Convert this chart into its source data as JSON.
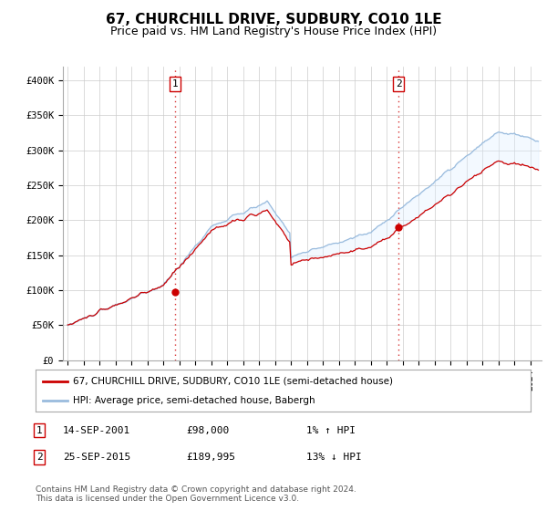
{
  "title": "67, CHURCHILL DRIVE, SUDBURY, CO10 1LE",
  "subtitle": "Price paid vs. HM Land Registry's House Price Index (HPI)",
  "ylabel_ticks": [
    "£0",
    "£50K",
    "£100K",
    "£150K",
    "£200K",
    "£250K",
    "£300K",
    "£350K",
    "£400K"
  ],
  "ytick_values": [
    0,
    50000,
    100000,
    150000,
    200000,
    250000,
    300000,
    350000,
    400000
  ],
  "ylim": [
    0,
    420000
  ],
  "xlim_start": 1994.7,
  "xlim_end": 2024.7,
  "red_color": "#cc0000",
  "blue_color": "#99bbdd",
  "fill_color": "#ddeeff",
  "dashed_color": "#cc0000",
  "grid_color": "#cccccc",
  "legend_label_red": "67, CHURCHILL DRIVE, SUDBURY, CO10 1LE (semi-detached house)",
  "legend_label_blue": "HPI: Average price, semi-detached house, Babergh",
  "point1_x": 2001.71,
  "point1_y": 98000,
  "point1_label": "1",
  "point2_x": 2015.73,
  "point2_y": 189995,
  "point2_label": "2",
  "table_rows": [
    {
      "num": "1",
      "date": "14-SEP-2001",
      "price": "£98,000",
      "hpi": "1% ↑ HPI"
    },
    {
      "num": "2",
      "date": "25-SEP-2015",
      "price": "£189,995",
      "hpi": "13% ↓ HPI"
    }
  ],
  "footer": "Contains HM Land Registry data © Crown copyright and database right 2024.\nThis data is licensed under the Open Government Licence v3.0.",
  "background_color": "#ffffff",
  "title_fontsize": 11,
  "subtitle_fontsize": 9
}
